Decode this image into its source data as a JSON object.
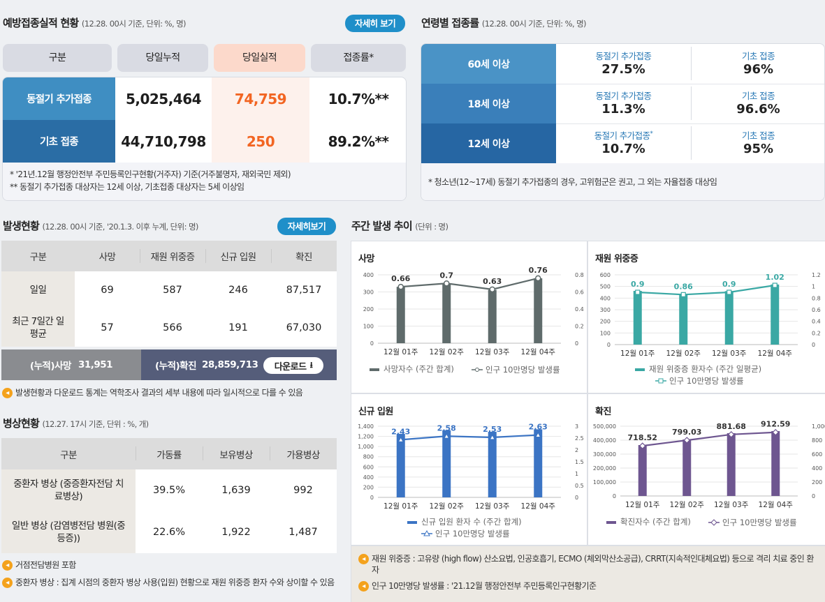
{
  "vacc": {
    "title": "예방접종실적 현황",
    "sub": "(12.28. 00시 기준, 단위: %, 명)",
    "btn": "자세히 보기",
    "headers": [
      "구분",
      "당일누적",
      "당일실적",
      "접종률*"
    ],
    "rows": [
      {
        "label": "동절기 추가접종",
        "cum": "5,025,464",
        "day": "74,759",
        "rate": "10.7%**"
      },
      {
        "label": "기초 접종",
        "cum": "44,710,798",
        "day": "250",
        "rate": "89.2%**"
      }
    ],
    "notes": [
      "* '21년.12월 행정안전부 주민등록인구현황(거주자) 기준(거주불명자, 재외국민 제외)",
      "** 동절기 추가접종 대상자는 12세 이상, 기초접종 대상자는 5세 이상임"
    ]
  },
  "age": {
    "title": "연령별 접종률",
    "sub": "(12.28. 00시 기준, 단위: %, 명)",
    "rows": [
      {
        "label": "60세 이상",
        "a_lbl": "동절기 추가접종",
        "a_val": "27.5%",
        "b_lbl": "기초 접종",
        "b_val": "96%"
      },
      {
        "label": "18세 이상",
        "a_lbl": "동절기 추가접종",
        "a_val": "11.3%",
        "b_lbl": "기초 접종",
        "b_val": "96.6%"
      },
      {
        "label": "12세 이상",
        "a_lbl": "동절기 추가접종",
        "a_mark": "*",
        "a_val": "10.7%",
        "b_lbl": "기초 접종",
        "b_val": "95%"
      }
    ],
    "note": "* 청소년(12~17세) 동절기 추가접종의 경우, 고위험군은 권고, 그 외는 자율접종 대상임"
  },
  "occ": {
    "title": "발생현황",
    "sub": "(12.28. 00시 기준, '20.1.3. 이후 누계, 단위: 명)",
    "btn": "자세히보기",
    "headers": [
      "구분",
      "사망",
      "재원 위중증",
      "신규 입원",
      "확진"
    ],
    "rows": [
      {
        "label": "일일",
        "v": [
          "69",
          "587",
          "246",
          "87,517"
        ]
      },
      {
        "label": "최근 7일간 일평균",
        "v": [
          "57",
          "566",
          "191",
          "67,030"
        ]
      }
    ],
    "cum_death_lbl": "(누적)사망",
    "cum_death": "31,951",
    "cum_conf_lbl": "(누적)확진",
    "cum_conf": "28,859,713",
    "download": "다운로드",
    "note": "발생현황과 다운로드 통계는 역학조사 결과의 세부 내용에 따라 일시적으로 다를 수 있음"
  },
  "bed": {
    "title": "병상현황",
    "sub": "(12.27. 17시 기준, 단위 : %, 개)",
    "headers": [
      "구분",
      "가동률",
      "보유병상",
      "가용병상"
    ],
    "rows": [
      {
        "label": "중환자 병상 (중증환자전담 치료병상)",
        "v": [
          "39.5%",
          "1,639",
          "992"
        ]
      },
      {
        "label": "일반 병상 (감염병전담 병원(중등증))",
        "v": [
          "22.6%",
          "1,922",
          "1,487"
        ]
      }
    ],
    "notes": [
      "거점전담병원 포함",
      "중환자 병상 : 집계 시점의 중환자 병상 사용(입원) 현황으로 재원 위중증 환자 수와 상이할 수 있음"
    ]
  },
  "weekly": {
    "title": "주간 발생 추이",
    "sub": "(단위 : 명)",
    "notes": [
      "재원 위중증 : 고유량 (high flow) 산소요법, 인공호흡기, ECMO (체외막산소공급), CRRT(지속적인대체요법) 등으로 격리 치료 중인 환자",
      "인구 10만명당 발생률 : '21.12월 행정안전부 주민등록인구현황기준"
    ]
  },
  "chart_data": [
    {
      "type": "bar",
      "title": "사망",
      "categories": [
        "12월 01주",
        "12월 02주",
        "12월 03주",
        "12월 04주"
      ],
      "series": [
        {
          "name": "사망자수 (주간 합계)",
          "values": [
            330,
            350,
            312,
            380
          ],
          "color": "#5f6b6b"
        },
        {
          "name": "인구 10만명당 발생률",
          "type": "line",
          "axis": "right",
          "values": [
            0.66,
            0.7,
            0.63,
            0.76
          ],
          "labels": [
            "0.66",
            "0.7",
            "0.63",
            "0.76"
          ],
          "color": "#5f6b6b"
        }
      ],
      "yticks": [
        "0",
        "100",
        "200",
        "300",
        "400"
      ],
      "y2ticks": [
        "0",
        "0.2",
        "0.4",
        "0.6",
        "0.8"
      ],
      "ylim": [
        0,
        400
      ],
      "y2lim": [
        0,
        0.8
      ]
    },
    {
      "type": "bar",
      "title": "재원 위중증",
      "categories": [
        "12월 01주",
        "12월 02주",
        "12월 03주",
        "12월 04주"
      ],
      "series": [
        {
          "name": "재원 위중증 환자수 (주간 일평균)",
          "values": [
            462,
            436,
            460,
            517
          ],
          "color": "#3aa8a4"
        },
        {
          "name": "인구 10만명당 발생률",
          "type": "line",
          "axis": "right",
          "values": [
            0.9,
            0.86,
            0.9,
            1.02
          ],
          "labels": [
            "0.9",
            "0.86",
            "0.9",
            "1.02"
          ],
          "color": "#3aa8a4"
        }
      ],
      "yticks": [
        "0",
        "100",
        "200",
        "300",
        "400",
        "500",
        "600"
      ],
      "y2ticks": [
        "0",
        "0.2",
        "0.4",
        "0.6",
        "0.8",
        "1",
        "1.2"
      ],
      "ylim": [
        0,
        600
      ],
      "y2lim": [
        0,
        1.2
      ]
    },
    {
      "type": "bar",
      "title": "신규 입원",
      "categories": [
        "12월 01주",
        "12월 02주",
        "12월 03주",
        "12월 04주"
      ],
      "series": [
        {
          "name": "신규 입원 환자 수 (주간 합계)",
          "values": [
            1250,
            1320,
            1290,
            1340
          ],
          "color": "#3b74c4"
        },
        {
          "name": "인구 10만명당 발생률",
          "type": "line",
          "axis": "right",
          "values": [
            2.43,
            2.58,
            2.53,
            2.63
          ],
          "labels": [
            "2.43",
            "2.58",
            "2.53",
            "2.63"
          ],
          "color": "#3b74c4"
        }
      ],
      "yticks": [
        "0",
        "200",
        "400",
        "600",
        "800",
        "1,000",
        "1,200",
        "1,400"
      ],
      "y2ticks": [
        "0",
        "0.5",
        "1",
        "1.5",
        "2",
        "2.5",
        "3"
      ],
      "ylim": [
        0,
        1400
      ],
      "y2lim": [
        0,
        3
      ]
    },
    {
      "type": "bar",
      "title": "확진",
      "categories": [
        "12월 01주",
        "12월 02주",
        "12월 03주",
        "12월 04주"
      ],
      "series": [
        {
          "name": "확진자수 (주간 합계)",
          "values": [
            365000,
            405000,
            450000,
            465000
          ],
          "color": "#6e5690"
        },
        {
          "name": "인구 10만명당 발생률",
          "type": "line",
          "axis": "right",
          "values": [
            718.52,
            799.03,
            881.68,
            912.59
          ],
          "labels": [
            "718.52",
            "799.03",
            "881.68",
            "912.59"
          ],
          "color": "#6e5690"
        }
      ],
      "yticks": [
        "0",
        "100,000",
        "200,000",
        "300,000",
        "400,000",
        "500,000"
      ],
      "y2ticks": [
        "0",
        "200",
        "400",
        "600",
        "800",
        "1,000"
      ],
      "ylim": [
        0,
        500000
      ],
      "y2lim": [
        0,
        1000
      ]
    }
  ]
}
